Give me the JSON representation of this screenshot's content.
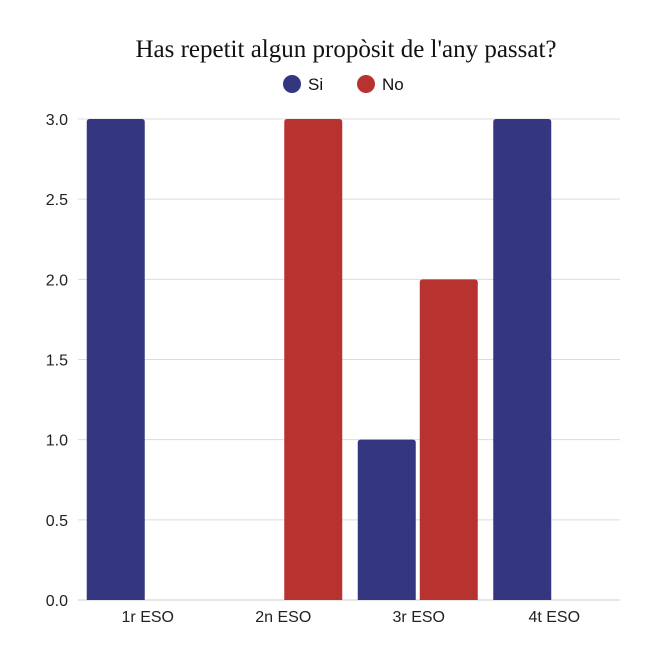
{
  "chart_data": {
    "type": "bar",
    "title": "Has repetit algun propòsit de l'any passat?",
    "xlabel": "",
    "ylabel": "",
    "categories": [
      "1r ESO",
      "2n ESO",
      "3r ESO",
      "4t ESO"
    ],
    "series": [
      {
        "name": "Si",
        "values": [
          3,
          0,
          1,
          3
        ],
        "color": "#343680"
      },
      {
        "name": "No",
        "values": [
          0,
          3,
          2,
          0
        ],
        "color": "#B83230"
      }
    ],
    "ylim": [
      0,
      3
    ],
    "yticks": [
      "0.0",
      "0.5",
      "1.0",
      "1.5",
      "2.0",
      "2.5",
      "3.0"
    ],
    "grid": true,
    "legend": "top-center"
  }
}
